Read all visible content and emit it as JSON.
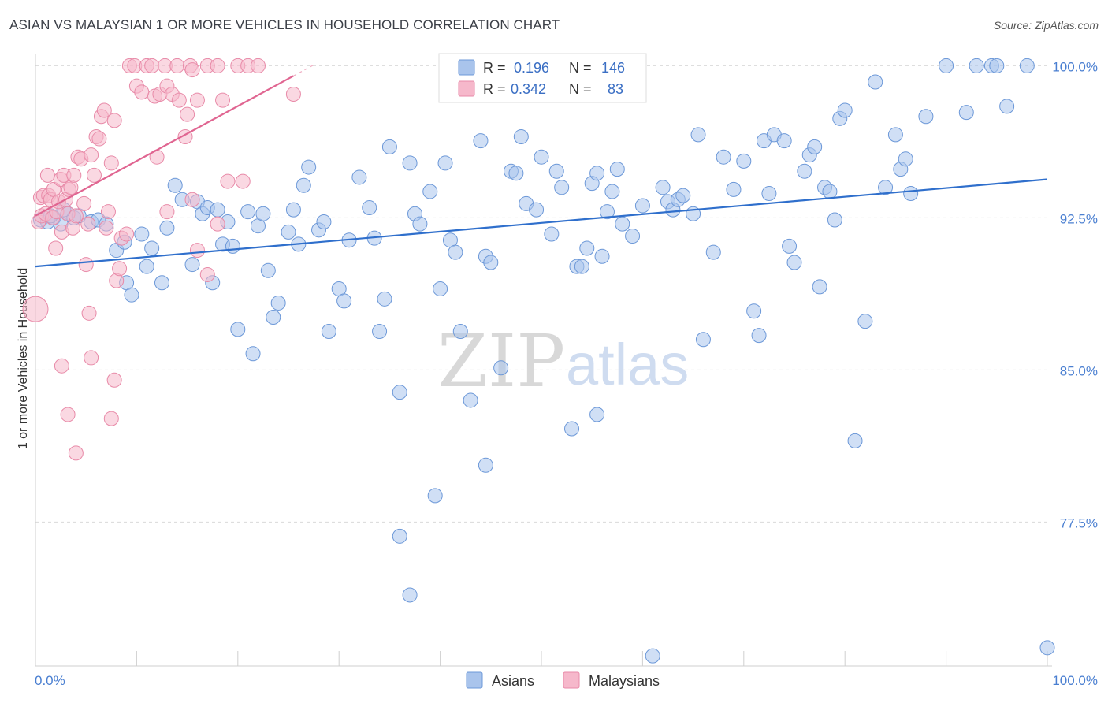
{
  "title": "ASIAN VS MALAYSIAN 1 OR MORE VEHICLES IN HOUSEHOLD CORRELATION CHART",
  "source": "Source: ZipAtlas.com",
  "watermark": {
    "zip": "ZIP",
    "atlas": "atlas"
  },
  "colors": {
    "asian_fill": "#a9c4ec",
    "asian_stroke": "#6c98d8",
    "asian_line": "#2f6fcc",
    "malay_fill": "#f6b8cb",
    "malay_stroke": "#e88aa8",
    "malay_line": "#e06591",
    "grid": "#d9d9d9",
    "tick_text": "#4a7fd1"
  },
  "legend": {
    "r_label": "R =",
    "n_label": "N =",
    "asian": {
      "r": "0.196",
      "n": "146"
    },
    "malay": {
      "r": "0.342",
      "n": "83"
    }
  },
  "bottom_legend": {
    "asian": "Asians",
    "malay": "Malaysians"
  },
  "chart_data": {
    "type": "scatter",
    "title": "ASIAN VS MALAYSIAN 1 OR MORE VEHICLES IN HOUSEHOLD CORRELATION CHART",
    "xlabel": "",
    "ylabel": "1 or more Vehicles in Household",
    "xlim": [
      0,
      100
    ],
    "ylim": [
      70.4,
      100.6
    ],
    "x_tick_labels": [
      "0.0%",
      "100.0%"
    ],
    "y_ticks": [
      77.5,
      85.0,
      92.5,
      100.0
    ],
    "y_tick_labels": [
      "77.5%",
      "85.0%",
      "92.5%",
      "100.0%"
    ],
    "series": [
      {
        "name": "Asians",
        "r": 0.196,
        "n": 146,
        "trend": {
          "x": [
            0,
            100
          ],
          "y": [
            90.1,
            94.4
          ]
        },
        "points": [
          [
            0.5,
            92.4
          ],
          [
            1.2,
            92.3
          ],
          [
            1.8,
            92.5
          ],
          [
            2.5,
            92.2
          ],
          [
            3.2,
            92.7
          ],
          [
            3.8,
            92.5
          ],
          [
            4.3,
            92.6
          ],
          [
            5.5,
            92.3
          ],
          [
            6.2,
            92.4
          ],
          [
            7.0,
            92.2
          ],
          [
            2.8,
            92.9
          ],
          [
            1.5,
            92.6
          ],
          [
            8.0,
            90.9
          ],
          [
            9.0,
            89.3
          ],
          [
            9.5,
            88.7
          ],
          [
            8.8,
            91.3
          ],
          [
            10.5,
            91.7
          ],
          [
            11.0,
            90.1
          ],
          [
            11.5,
            91.0
          ],
          [
            12.5,
            89.3
          ],
          [
            13.0,
            92.0
          ],
          [
            13.8,
            94.1
          ],
          [
            14.5,
            93.4
          ],
          [
            15.5,
            90.2
          ],
          [
            16.0,
            93.3
          ],
          [
            16.5,
            92.7
          ],
          [
            17.0,
            93.0
          ],
          [
            17.5,
            89.3
          ],
          [
            18.0,
            92.9
          ],
          [
            18.5,
            91.2
          ],
          [
            19.0,
            92.3
          ],
          [
            19.5,
            91.1
          ],
          [
            20.0,
            87.0
          ],
          [
            21.0,
            92.8
          ],
          [
            21.5,
            85.8
          ],
          [
            22.0,
            92.1
          ],
          [
            22.5,
            92.7
          ],
          [
            23.0,
            89.9
          ],
          [
            23.5,
            87.6
          ],
          [
            24.0,
            88.3
          ],
          [
            25.0,
            91.8
          ],
          [
            25.5,
            92.9
          ],
          [
            26.0,
            91.2
          ],
          [
            26.5,
            94.1
          ],
          [
            27.0,
            95.0
          ],
          [
            28.0,
            91.9
          ],
          [
            28.5,
            92.3
          ],
          [
            29.0,
            86.9
          ],
          [
            30.0,
            89.0
          ],
          [
            30.5,
            88.4
          ],
          [
            31.0,
            91.4
          ],
          [
            32.0,
            94.5
          ],
          [
            33.0,
            93.0
          ],
          [
            33.5,
            91.5
          ],
          [
            34.0,
            86.9
          ],
          [
            34.5,
            88.5
          ],
          [
            35.0,
            96.0
          ],
          [
            36.0,
            83.9
          ],
          [
            37.0,
            95.2
          ],
          [
            37.5,
            92.7
          ],
          [
            38.0,
            92.2
          ],
          [
            39.0,
            93.8
          ],
          [
            40.0,
            89.0
          ],
          [
            40.5,
            95.2
          ],
          [
            41.0,
            91.4
          ],
          [
            41.5,
            90.8
          ],
          [
            42.0,
            86.9
          ],
          [
            43.0,
            83.5
          ],
          [
            44.0,
            96.3
          ],
          [
            44.5,
            80.3
          ],
          [
            44.5,
            90.6
          ],
          [
            45.0,
            90.3
          ],
          [
            46.0,
            85.1
          ],
          [
            47.0,
            94.8
          ],
          [
            47.5,
            94.7
          ],
          [
            48.0,
            96.5
          ],
          [
            48.5,
            93.2
          ],
          [
            49.5,
            92.9
          ],
          [
            50.0,
            95.5
          ],
          [
            51.0,
            91.7
          ],
          [
            51.5,
            94.8
          ],
          [
            52.0,
            94.0
          ],
          [
            53.0,
            82.1
          ],
          [
            53.5,
            90.1
          ],
          [
            54.0,
            90.1
          ],
          [
            54.5,
            91.0
          ],
          [
            55.0,
            94.2
          ],
          [
            55.5,
            94.7
          ],
          [
            56.0,
            90.6
          ],
          [
            56.5,
            92.8
          ],
          [
            57.0,
            93.8
          ],
          [
            57.5,
            94.9
          ],
          [
            58.0,
            92.2
          ],
          [
            59.0,
            91.6
          ],
          [
            60.0,
            93.1
          ],
          [
            61.0,
            70.9
          ],
          [
            62.0,
            94.0
          ],
          [
            62.5,
            93.3
          ],
          [
            63.0,
            92.9
          ],
          [
            63.5,
            93.4
          ],
          [
            64.0,
            93.6
          ],
          [
            65.0,
            92.7
          ],
          [
            65.5,
            96.6
          ],
          [
            66.0,
            86.5
          ],
          [
            67.0,
            90.8
          ],
          [
            68.0,
            95.5
          ],
          [
            69.0,
            93.9
          ],
          [
            70.0,
            95.3
          ],
          [
            71.0,
            87.9
          ],
          [
            71.5,
            86.7
          ],
          [
            72.0,
            96.3
          ],
          [
            72.5,
            93.7
          ],
          [
            73.0,
            96.6
          ],
          [
            74.0,
            96.3
          ],
          [
            74.5,
            91.1
          ],
          [
            75.0,
            90.3
          ],
          [
            76.0,
            94.8
          ],
          [
            76.5,
            95.6
          ],
          [
            77.0,
            96.0
          ],
          [
            77.5,
            89.1
          ],
          [
            78.0,
            94.0
          ],
          [
            78.5,
            93.8
          ],
          [
            79.0,
            92.4
          ],
          [
            79.5,
            97.4
          ],
          [
            80.0,
            97.8
          ],
          [
            81.0,
            81.5
          ],
          [
            82.0,
            87.4
          ],
          [
            83.0,
            99.2
          ],
          [
            84.0,
            94.0
          ],
          [
            85.0,
            96.6
          ],
          [
            85.5,
            94.9
          ],
          [
            86.0,
            95.4
          ],
          [
            86.5,
            93.7
          ],
          [
            88.0,
            97.5
          ],
          [
            90.0,
            100.0
          ],
          [
            92.0,
            97.7
          ],
          [
            93.0,
            100.0
          ],
          [
            94.5,
            100.0
          ],
          [
            95.0,
            100.0
          ],
          [
            98.0,
            100.0
          ],
          [
            100.0,
            71.3
          ],
          [
            96.0,
            98.0
          ],
          [
            55.5,
            82.8
          ],
          [
            36.0,
            76.8
          ],
          [
            37.0,
            73.9
          ],
          [
            39.5,
            78.8
          ]
        ]
      },
      {
        "name": "Malaysians",
        "r": 0.342,
        "n": 83,
        "trend": {
          "x": [
            0,
            25.5
          ],
          "y": [
            92.6,
            99.5
          ]
        },
        "points": [
          [
            0.0,
            88.0
          ],
          [
            0.3,
            92.3
          ],
          [
            0.5,
            93.5
          ],
          [
            0.6,
            92.6
          ],
          [
            0.8,
            93.6
          ],
          [
            1.0,
            92.7
          ],
          [
            1.2,
            94.6
          ],
          [
            1.3,
            93.6
          ],
          [
            1.5,
            93.4
          ],
          [
            1.7,
            92.5
          ],
          [
            1.8,
            93.9
          ],
          [
            2.0,
            91.0
          ],
          [
            2.1,
            92.8
          ],
          [
            2.3,
            93.3
          ],
          [
            2.5,
            94.4
          ],
          [
            2.6,
            91.8
          ],
          [
            2.8,
            94.6
          ],
          [
            3.0,
            93.4
          ],
          [
            3.2,
            92.7
          ],
          [
            3.3,
            93.9
          ],
          [
            3.5,
            94.0
          ],
          [
            3.7,
            92.0
          ],
          [
            3.8,
            94.6
          ],
          [
            4.0,
            92.6
          ],
          [
            4.2,
            95.5
          ],
          [
            4.5,
            95.4
          ],
          [
            4.8,
            93.2
          ],
          [
            5.0,
            90.2
          ],
          [
            5.2,
            92.2
          ],
          [
            5.5,
            95.6
          ],
          [
            5.8,
            94.6
          ],
          [
            6.0,
            96.5
          ],
          [
            6.3,
            96.4
          ],
          [
            6.5,
            97.5
          ],
          [
            6.8,
            97.8
          ],
          [
            7.0,
            92.0
          ],
          [
            7.2,
            92.8
          ],
          [
            7.5,
            95.2
          ],
          [
            7.8,
            97.3
          ],
          [
            8.0,
            89.4
          ],
          [
            8.3,
            90.0
          ],
          [
            8.5,
            91.5
          ],
          [
            9.0,
            91.7
          ],
          [
            9.3,
            100.0
          ],
          [
            9.8,
            100.0
          ],
          [
            10.0,
            99.0
          ],
          [
            10.5,
            98.7
          ],
          [
            11.0,
            100.0
          ],
          [
            11.5,
            100.0
          ],
          [
            11.8,
            98.5
          ],
          [
            12.0,
            95.5
          ],
          [
            12.3,
            98.6
          ],
          [
            12.8,
            100.0
          ],
          [
            13.0,
            99.0
          ],
          [
            13.5,
            98.6
          ],
          [
            14.0,
            100.0
          ],
          [
            14.2,
            98.3
          ],
          [
            14.8,
            96.5
          ],
          [
            15.0,
            97.6
          ],
          [
            15.3,
            100.0
          ],
          [
            15.5,
            99.8
          ],
          [
            16.0,
            98.3
          ],
          [
            17.0,
            100.0
          ],
          [
            18.0,
            100.0
          ],
          [
            18.5,
            98.3
          ],
          [
            19.0,
            94.3
          ],
          [
            20.0,
            100.0
          ],
          [
            21.0,
            100.0
          ],
          [
            22.0,
            100.0
          ],
          [
            5.3,
            87.8
          ],
          [
            5.5,
            85.6
          ],
          [
            2.6,
            85.2
          ],
          [
            3.2,
            82.8
          ],
          [
            7.5,
            82.6
          ],
          [
            7.8,
            84.5
          ],
          [
            4.0,
            80.9
          ],
          [
            13.0,
            92.8
          ],
          [
            15.5,
            93.4
          ],
          [
            16.0,
            90.9
          ],
          [
            17.0,
            89.7
          ],
          [
            18.0,
            92.2
          ],
          [
            20.5,
            94.3
          ],
          [
            25.5,
            98.6
          ]
        ]
      }
    ]
  }
}
